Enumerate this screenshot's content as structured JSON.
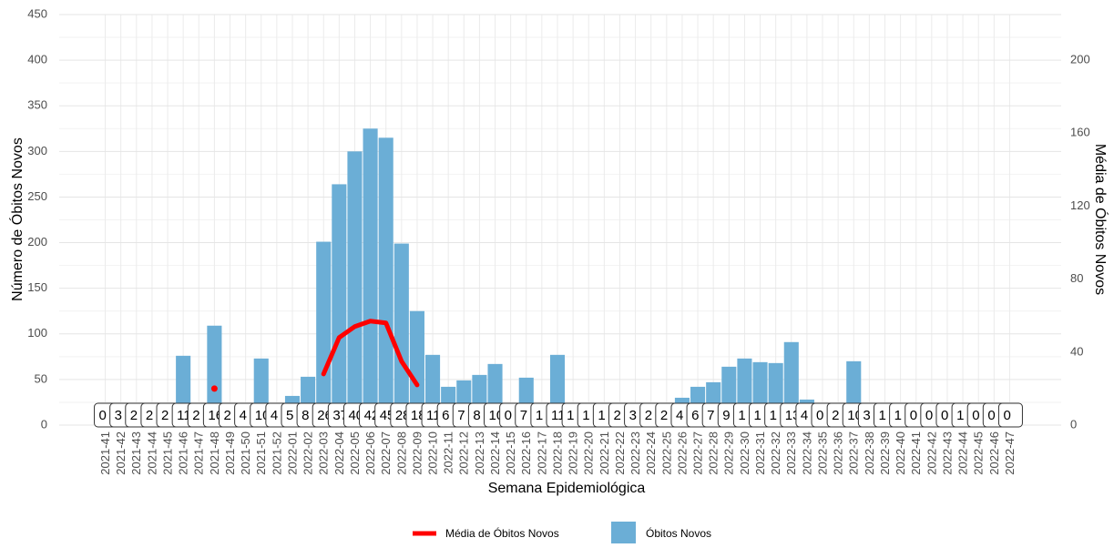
{
  "chart_data": {
    "type": "bar",
    "x_label": "Semana Epidemiológica",
    "y_label": "Número de Óbitos Novos",
    "y2_label": "Média de Óbitos Novos",
    "categories": [
      "2021-41",
      "2021-42",
      "2021-43",
      "2021-44",
      "2021-45",
      "2021-46",
      "2021-47",
      "2021-48",
      "2021-49",
      "2021-50",
      "2021-51",
      "2021-52",
      "2022-01",
      "2022-02",
      "2022-03",
      "2022-04",
      "2022-05",
      "2022-06",
      "2022-07",
      "2022-08",
      "2022-09",
      "2022-10",
      "2022-11",
      "2022-12",
      "2022-13",
      "2022-14",
      "2022-15",
      "2022-16",
      "2022-17",
      "2022-18",
      "2022-19",
      "2022-20",
      "2022-21",
      "2022-22",
      "2022-23",
      "2022-24",
      "2022-25",
      "2022-26",
      "2022-27",
      "2022-28",
      "2022-29",
      "2022-30",
      "2022-31",
      "2022-32",
      "2022-33",
      "2022-34",
      "2022-35",
      "2022-36",
      "2022-37",
      "2022-38",
      "2022-39",
      "2022-40",
      "2022-41",
      "2022-42",
      "2022-43",
      "2022-44",
      "2022-45",
      "2022-46",
      "2022-47"
    ],
    "series": [
      {
        "name": "Óbitos Novos",
        "color": "#6baed6",
        "type": "bar",
        "values": [
          0,
          3,
          2,
          2,
          2,
          76,
          2,
          109,
          2,
          4,
          73,
          4,
          32,
          53,
          201,
          264,
          300,
          325,
          315,
          199,
          125,
          77,
          42,
          49,
          55,
          67,
          0,
          52,
          5,
          77,
          1,
          1,
          1,
          2,
          3,
          2,
          2,
          30,
          42,
          47,
          64,
          73,
          69,
          68,
          91,
          28,
          0,
          2,
          70,
          3,
          1,
          1,
          0,
          0,
          0,
          1,
          0,
          0,
          0
        ]
      },
      {
        "name": "Média de Óbitos Novos",
        "color": "#ff0000",
        "type": "line",
        "axis": "y2",
        "values": [
          null,
          null,
          null,
          null,
          null,
          null,
          null,
          20,
          null,
          null,
          null,
          null,
          null,
          null,
          28,
          48,
          54,
          57,
          56,
          35,
          22,
          null,
          null,
          null,
          null,
          null,
          null,
          null,
          null,
          null,
          null,
          null,
          null,
          null,
          null,
          null,
          null,
          null,
          null,
          null,
          null,
          null,
          null,
          null,
          null,
          null,
          null,
          null,
          null,
          null,
          null,
          null,
          null,
          null,
          null,
          null,
          null,
          null,
          null
        ]
      }
    ],
    "point_labels": [
      "0",
      "3",
      "2",
      "2",
      "2",
      "11",
      "2",
      "16",
      "2",
      "4",
      "10",
      "4",
      "5",
      "8",
      "26",
      "37",
      "40",
      "42",
      "45",
      "28",
      "18",
      "11",
      "6",
      "7",
      "8",
      "10",
      "0",
      "7",
      "1",
      "11",
      "1",
      "1",
      "1",
      "2",
      "3",
      "2",
      "2",
      "4",
      "6",
      "7",
      "9",
      "1",
      "1",
      "1",
      "13",
      "4",
      "0",
      "2",
      "10",
      "3",
      "1",
      "1",
      "0",
      "0",
      "0",
      "1",
      "0",
      "0",
      "0"
    ],
    "ylim": [
      0,
      450
    ],
    "yticks": [
      0,
      50,
      100,
      150,
      200,
      250,
      300,
      350,
      400,
      450
    ],
    "y2lim": [
      0,
      225
    ],
    "y2ticks": [
      0,
      40,
      80,
      120,
      160,
      200
    ],
    "grid": true,
    "legend": "bottom"
  }
}
